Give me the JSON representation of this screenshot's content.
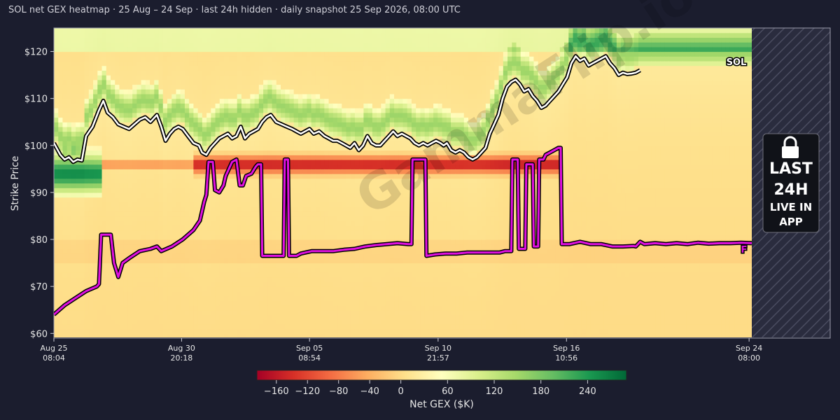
{
  "chart_data": {
    "type": "heatmap",
    "title": "SOL net GEX heatmap · 25 Aug – 24 Sep · last 24h hidden · daily snapshot 25 Sep 2026, 08:00 UTC",
    "ylabel": "Strike Price",
    "y_ticks": [
      "$60",
      "$70",
      "$80",
      "$90",
      "$100",
      "$110",
      "$120"
    ],
    "y_tick_values": [
      60,
      70,
      80,
      90,
      100,
      110,
      120
    ],
    "ylim": [
      59,
      125
    ],
    "x_tick_labels": [
      {
        "date": "Aug 25",
        "time": "08:04",
        "day": 0
      },
      {
        "date": "Aug 30",
        "time": "20:18",
        "day": 5.51
      },
      {
        "date": "Sep 05",
        "time": "08:54",
        "day": 11.03
      },
      {
        "date": "Sep 10",
        "time": "21:57",
        "day": 16.58
      },
      {
        "date": "Sep 16",
        "time": "10:56",
        "day": 22.12
      },
      {
        "date": "Sep 24",
        "time": "08:00",
        "day": 30
      }
    ],
    "xlim_days": [
      0,
      33.5
    ],
    "hidden_from_day": 30,
    "colorbar": {
      "label": "Net GEX ($K)",
      "ticks": [
        -160,
        -120,
        -80,
        -40,
        0,
        60,
        120,
        180,
        240
      ],
      "min": -185,
      "max": 290,
      "colors": [
        "#a50026",
        "#d73027",
        "#f46d43",
        "#fdae61",
        "#fee08b",
        "#ffffbf",
        "#d9ef8b",
        "#a6d96a",
        "#66bd63",
        "#1a9850",
        "#006837"
      ]
    },
    "series": [
      {
        "name": "SOL",
        "color": "#ffffff",
        "points": [
          [
            0,
            100.5
          ],
          [
            0.6,
            98
          ],
          [
            1,
            97
          ],
          [
            1.4,
            97.5
          ],
          [
            1.8,
            96.5
          ],
          [
            2.2,
            97
          ],
          [
            2.6,
            96.8
          ],
          [
            3,
            102
          ],
          [
            3.6,
            104
          ],
          [
            4.2,
            107.5
          ],
          [
            4.6,
            109.5
          ],
          [
            5,
            107
          ],
          [
            5.5,
            106
          ],
          [
            6,
            104.5
          ],
          [
            6.5,
            104
          ],
          [
            7,
            103.5
          ],
          [
            7.5,
            104.5
          ],
          [
            8,
            105.5
          ],
          [
            8.5,
            106
          ],
          [
            9,
            105
          ],
          [
            9.6,
            106.5
          ],
          [
            10,
            104
          ],
          [
            10.4,
            101
          ],
          [
            10.8,
            102.5
          ],
          [
            11.2,
            103.5
          ],
          [
            11.6,
            104
          ],
          [
            12,
            103.5
          ],
          [
            12.5,
            102
          ],
          [
            13,
            100.5
          ],
          [
            13.5,
            100
          ],
          [
            13.8,
            98.5
          ],
          [
            14.2,
            98
          ],
          [
            14.6,
            99.5
          ],
          [
            15,
            100.5
          ],
          [
            15.4,
            101.5
          ],
          [
            15.8,
            102
          ],
          [
            16.2,
            102.5
          ],
          [
            16.6,
            101.5
          ],
          [
            17,
            102
          ],
          [
            17.4,
            104
          ],
          [
            17.8,
            101.5
          ],
          [
            18.2,
            102.5
          ],
          [
            18.6,
            103
          ],
          [
            19,
            103.5
          ],
          [
            19.4,
            105
          ],
          [
            19.8,
            106
          ],
          [
            20.2,
            106.5
          ],
          [
            20.7,
            105
          ],
          [
            21.2,
            104.5
          ],
          [
            21.7,
            104
          ],
          [
            22.2,
            103.5
          ],
          [
            22.6,
            103
          ],
          [
            23,
            102.5
          ],
          [
            23.4,
            103
          ],
          [
            23.8,
            103.5
          ],
          [
            24.2,
            102.5
          ],
          [
            24.7,
            103
          ],
          [
            25.2,
            102
          ],
          [
            25.6,
            101.5
          ],
          [
            26,
            101
          ],
          [
            26.4,
            101
          ],
          [
            26.8,
            100.5
          ],
          [
            27.2,
            100
          ],
          [
            27.6,
            99.5
          ],
          [
            28,
            100.5
          ],
          [
            28.4,
            99
          ],
          [
            28.8,
            100
          ],
          [
            29.2,
            102
          ],
          [
            29.6,
            100.5
          ],
          [
            30,
            100
          ],
          [
            30.4,
            100
          ],
          [
            30.8,
            101
          ],
          [
            31.2,
            102
          ],
          [
            31.6,
            103
          ],
          [
            32,
            102
          ],
          [
            32.4,
            102.5
          ],
          [
            32.8,
            102
          ],
          [
            33.2,
            101.5
          ],
          [
            33.6,
            100.5
          ],
          [
            34,
            100
          ],
          [
            34.4,
            100.5
          ],
          [
            34.8,
            100
          ],
          [
            35.2,
            100.5
          ],
          [
            35.6,
            101
          ],
          [
            36,
            100.5
          ],
          [
            36.3,
            100
          ],
          [
            36.6,
            100.5
          ],
          [
            37,
            99
          ],
          [
            37.4,
            98.5
          ],
          [
            37.8,
            99
          ],
          [
            38.2,
            98.5
          ],
          [
            38.6,
            97.5
          ],
          [
            39,
            97
          ],
          [
            39.4,
            97.5
          ],
          [
            39.8,
            98.5
          ],
          [
            40.2,
            99.5
          ],
          [
            40.6,
            102.5
          ],
          [
            41,
            104.5
          ],
          [
            41.4,
            106.5
          ],
          [
            41.8,
            110
          ],
          [
            42.2,
            112.5
          ],
          [
            42.6,
            113.5
          ],
          [
            43,
            114
          ],
          [
            43.4,
            113
          ],
          [
            43.8,
            111.5
          ],
          [
            44.2,
            112
          ],
          [
            44.6,
            110.5
          ],
          [
            45,
            109.5
          ],
          [
            45.4,
            108
          ],
          [
            45.8,
            108.5
          ],
          [
            46.2,
            109.5
          ],
          [
            46.6,
            110.5
          ],
          [
            47,
            111.5
          ],
          [
            47.4,
            113
          ],
          [
            47.8,
            114.5
          ],
          [
            48.2,
            117.5
          ],
          [
            48.6,
            119
          ],
          [
            49,
            118
          ],
          [
            49.4,
            118.5
          ],
          [
            49.8,
            117
          ],
          [
            50.2,
            117.5
          ],
          [
            50.6,
            118
          ],
          [
            51,
            118.5
          ],
          [
            51.4,
            119
          ],
          [
            51.8,
            117.5
          ],
          [
            52.2,
            116.5
          ],
          [
            52.6,
            115
          ],
          [
            53,
            115.5
          ],
          [
            53.4,
            115.2
          ],
          [
            53.8,
            115.3
          ],
          [
            54.2,
            115.5
          ],
          [
            54.6,
            116
          ]
        ]
      },
      {
        "name": "F",
        "color": "#e010e0",
        "points": [
          [
            0,
            64
          ],
          [
            1,
            66
          ],
          [
            2,
            67.5
          ],
          [
            3,
            69
          ],
          [
            4,
            70
          ],
          [
            4.2,
            70.5
          ],
          [
            4.4,
            81
          ],
          [
            5.3,
            81
          ],
          [
            5.6,
            75
          ],
          [
            6,
            72
          ],
          [
            6.4,
            75
          ],
          [
            7,
            76
          ],
          [
            8,
            77.5
          ],
          [
            9,
            78
          ],
          [
            9.6,
            78.5
          ],
          [
            10,
            77.5
          ],
          [
            11,
            78.5
          ],
          [
            12,
            80
          ],
          [
            13,
            82
          ],
          [
            13.6,
            84
          ],
          [
            14,
            88
          ],
          [
            14.2,
            89.5
          ],
          [
            14.4,
            96.5
          ],
          [
            14.8,
            96.5
          ],
          [
            15,
            90.5
          ],
          [
            15.4,
            90
          ],
          [
            15.8,
            91.5
          ],
          [
            16,
            93.5
          ],
          [
            16.6,
            96.5
          ],
          [
            17,
            97
          ],
          [
            17.3,
            91.5
          ],
          [
            17.6,
            91.5
          ],
          [
            17.9,
            93.5
          ],
          [
            18.4,
            94
          ],
          [
            18.8,
            95.5
          ],
          [
            19,
            96
          ],
          [
            19.3,
            96
          ],
          [
            19.4,
            76.5
          ],
          [
            20,
            76.5
          ],
          [
            21,
            76.5
          ],
          [
            21.4,
            76.5
          ],
          [
            21.5,
            97
          ],
          [
            21.8,
            97
          ],
          [
            21.9,
            76.5
          ],
          [
            22.6,
            76.5
          ],
          [
            23,
            77
          ],
          [
            24,
            77.5
          ],
          [
            25,
            77.5
          ],
          [
            26,
            77.5
          ],
          [
            27,
            77.8
          ],
          [
            28,
            78
          ],
          [
            29,
            78.5
          ],
          [
            30,
            78.8
          ],
          [
            31,
            79
          ],
          [
            32,
            79.2
          ],
          [
            33,
            79
          ],
          [
            33.3,
            79
          ],
          [
            33.4,
            97
          ],
          [
            34,
            97
          ],
          [
            34.6,
            97
          ],
          [
            34.7,
            76.5
          ],
          [
            35.5,
            76.8
          ],
          [
            36.5,
            77
          ],
          [
            37.5,
            77
          ],
          [
            38.5,
            77.2
          ],
          [
            39.5,
            77.2
          ],
          [
            40.5,
            77.2
          ],
          [
            41.5,
            77.2
          ],
          [
            42,
            77.5
          ],
          [
            42.6,
            77.5
          ],
          [
            42.7,
            97
          ],
          [
            43.2,
            97
          ],
          [
            43.3,
            78
          ],
          [
            43.9,
            78
          ],
          [
            44,
            96
          ],
          [
            44.5,
            96
          ],
          [
            44.6,
            96
          ],
          [
            44.7,
            78.5
          ],
          [
            45.1,
            78.5
          ],
          [
            45.2,
            97
          ],
          [
            45.6,
            97
          ],
          [
            45.8,
            98
          ],
          [
            46.2,
            98.5
          ],
          [
            46.6,
            99
          ],
          [
            47,
            99.5
          ],
          [
            47.2,
            99.5
          ],
          [
            47.3,
            79
          ],
          [
            48,
            79
          ],
          [
            49,
            79.5
          ],
          [
            50,
            79
          ],
          [
            51,
            79
          ],
          [
            52,
            78.5
          ],
          [
            53,
            78.5
          ],
          [
            54,
            78.6
          ],
          [
            54.2,
            78.5
          ],
          [
            54.6,
            79.5
          ],
          [
            55,
            79
          ],
          [
            56,
            79.2
          ],
          [
            57,
            79
          ],
          [
            58,
            79.2
          ],
          [
            59,
            79
          ],
          [
            60,
            79.3
          ],
          [
            61,
            79.1
          ],
          [
            62,
            79.2
          ],
          [
            63,
            79.2
          ],
          [
            64,
            79.3
          ],
          [
            65,
            79.2
          ]
        ]
      }
    ],
    "series_x_domain": [
      0,
      65
    ],
    "annotations": {
      "sol_label": "SOL",
      "f_label": "F",
      "watermark": "GammaFlip.io",
      "locked_panel": [
        "LAST",
        "24H",
        "LIVE IN",
        "APP"
      ]
    }
  }
}
